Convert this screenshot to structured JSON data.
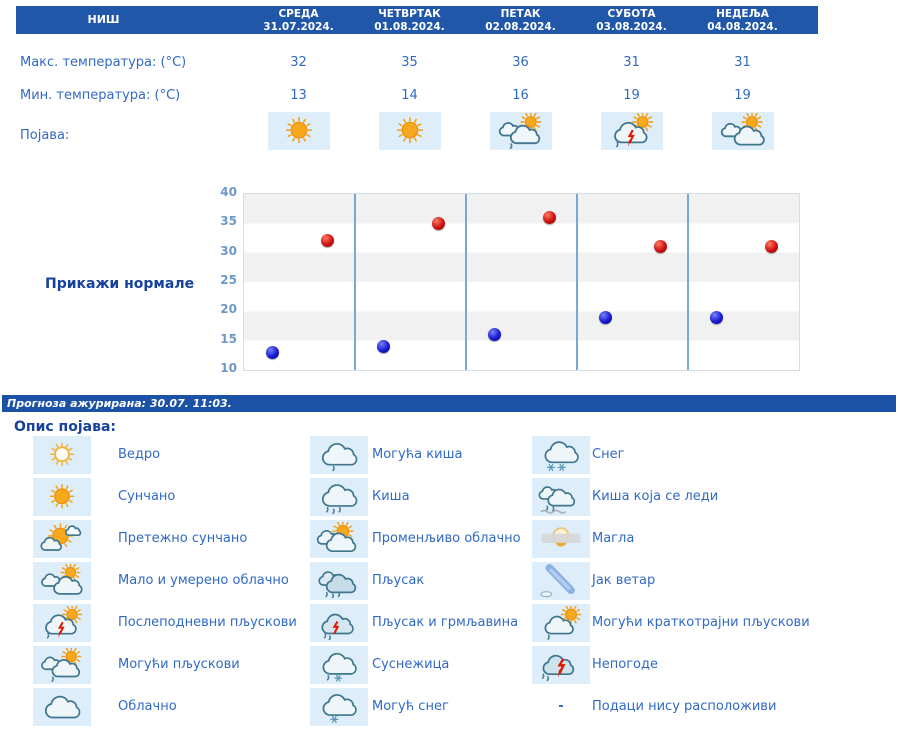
{
  "header": {
    "city": "НИШ",
    "days": [
      {
        "name": "СРЕДА",
        "date": "31.07.2024."
      },
      {
        "name": "ЧЕТВРТАК",
        "date": "01.08.2024."
      },
      {
        "name": "ПЕТАК",
        "date": "02.08.2024."
      },
      {
        "name": "СУБОТА",
        "date": "03.08.2024."
      },
      {
        "name": "НЕДЕЉА",
        "date": "04.08.2024."
      }
    ]
  },
  "table": {
    "max_label": "Макс. температура: (°C)",
    "min_label": "Мин. температура: (°C)",
    "phenomenon_label": "Појава:",
    "max_values": [
      "32",
      "35",
      "36",
      "31",
      "31"
    ],
    "min_values": [
      "13",
      "14",
      "16",
      "19",
      "19"
    ],
    "phenomenon_icons": [
      "sunny",
      "sunny",
      "possible-showers",
      "afternoon-showers",
      "partly-cloudy"
    ]
  },
  "chart": {
    "normals_link": "Прикажи нормале"
  },
  "chart_data": {
    "type": "scatter",
    "categories": [
      "СРЕДА 31.07.2024.",
      "ЧЕТВРТАК 01.08.2024.",
      "ПЕТАК 02.08.2024.",
      "СУБОТА 03.08.2024.",
      "НЕДЕЉА 04.08.2024."
    ],
    "series": [
      {
        "name": "Макс. температура (°C)",
        "color": "#cc1111",
        "values": [
          32,
          35,
          36,
          31,
          31
        ]
      },
      {
        "name": "Мин. температура (°C)",
        "color": "#1a1acc",
        "values": [
          13,
          14,
          16,
          19,
          19
        ]
      }
    ],
    "ylim": [
      10,
      40
    ],
    "ytick_step": 5,
    "grid": "alternating-horizontal-bands",
    "legend_position": "none",
    "title": "",
    "xlabel": "",
    "ylabel": ""
  },
  "status": {
    "updated": "Прогноза ажурирана:  30.07. 11:03."
  },
  "legend": {
    "heading": "Опис појава:",
    "columns": [
      [
        {
          "icon": "clear",
          "label": "Ведро"
        },
        {
          "icon": "sunny",
          "label": "Сунчано"
        },
        {
          "icon": "mostly-sunny",
          "label": "Претежно сунчано"
        },
        {
          "icon": "partly-cloudy",
          "label": "Мало и умерено облачно"
        },
        {
          "icon": "afternoon-showers",
          "label": "Послеподневни пљускови"
        },
        {
          "icon": "possible-showers",
          "label": "Могући пљускови"
        },
        {
          "icon": "cloudy",
          "label": "Облачно"
        }
      ],
      [
        {
          "icon": "possible-rain",
          "label": "Могућа киша"
        },
        {
          "icon": "rain",
          "label": "Киша"
        },
        {
          "icon": "variable-cloudy",
          "label": "Променљиво облачно"
        },
        {
          "icon": "shower",
          "label": "Пљусак"
        },
        {
          "icon": "shower-thunder",
          "label": "Пљусак и грмљавина"
        },
        {
          "icon": "sleet",
          "label": "Суснежица"
        },
        {
          "icon": "possible-snow",
          "label": "Могућ снег"
        }
      ],
      [
        {
          "icon": "snow",
          "label": "Снег"
        },
        {
          "icon": "freezing-rain",
          "label": "Киша која се леди"
        },
        {
          "icon": "fog",
          "label": "Магла"
        },
        {
          "icon": "strong-wind",
          "label": "Јак ветар"
        },
        {
          "icon": "brief-showers",
          "label": "Могући краткотрајни пљускови"
        },
        {
          "icon": "storms",
          "label": "Непогоде"
        },
        {
          "icon": "no-data",
          "label": "Подаци нису расположиви",
          "dash": "-"
        }
      ]
    ]
  },
  "colors": {
    "header_bar": "#2057a8",
    "status_bar": "#1b52a5",
    "text_blue": "#3169c6",
    "dark_blue": "#16419c",
    "axis_blue": "#6b98c8",
    "tile_bg": "#ddeefa",
    "band_gray": "#f1f1f1",
    "vline": "#7ba7d7",
    "dot_red": "#cc1111",
    "dot_blue": "#1a1acc"
  }
}
